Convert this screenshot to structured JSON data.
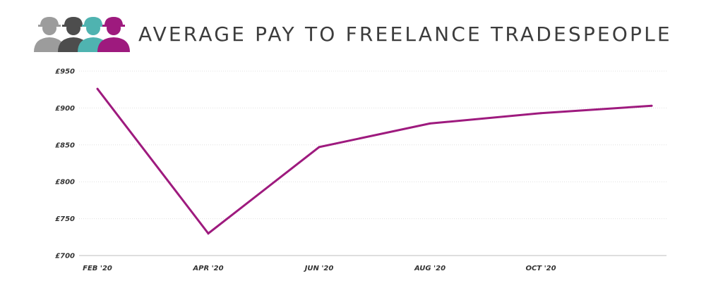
{
  "header": {
    "title": "AVERAGE PAY TO FREELANCE TRADESPEOPLE",
    "logo_icon": "tradespeople-group-icon",
    "logo_colors": [
      "#9c9c9c",
      "#4d4d4d",
      "#4fb3b0",
      "#9e1a7e"
    ]
  },
  "chart_data": {
    "type": "line",
    "title": "AVERAGE PAY TO FREELANCE TRADESPEOPLE",
    "xlabel": "",
    "ylabel": "",
    "x_tick_labels": [
      "FEB '20",
      "APR '20",
      "JUN '20",
      "AUG '20",
      "OCT '20"
    ],
    "y_tick_labels": [
      "£950",
      "£900",
      "£850",
      "£800",
      "£750",
      "£700"
    ],
    "y_ticks": [
      950,
      900,
      850,
      800,
      750,
      700
    ],
    "ylim": [
      700,
      950
    ],
    "x": [
      "2020-02",
      "2020-04",
      "2020-06",
      "2020-08",
      "2020-10",
      "2020-12"
    ],
    "x_axis_months": [
      "2020-02",
      "2020-12"
    ],
    "x_tick_months": [
      "2020-02",
      "2020-04",
      "2020-06",
      "2020-08",
      "2020-10"
    ],
    "series": [
      {
        "values": [
          926,
          730,
          847,
          879,
          893,
          903
        ],
        "color": "#9e1a7e"
      }
    ],
    "grid": true,
    "legend": "none"
  }
}
